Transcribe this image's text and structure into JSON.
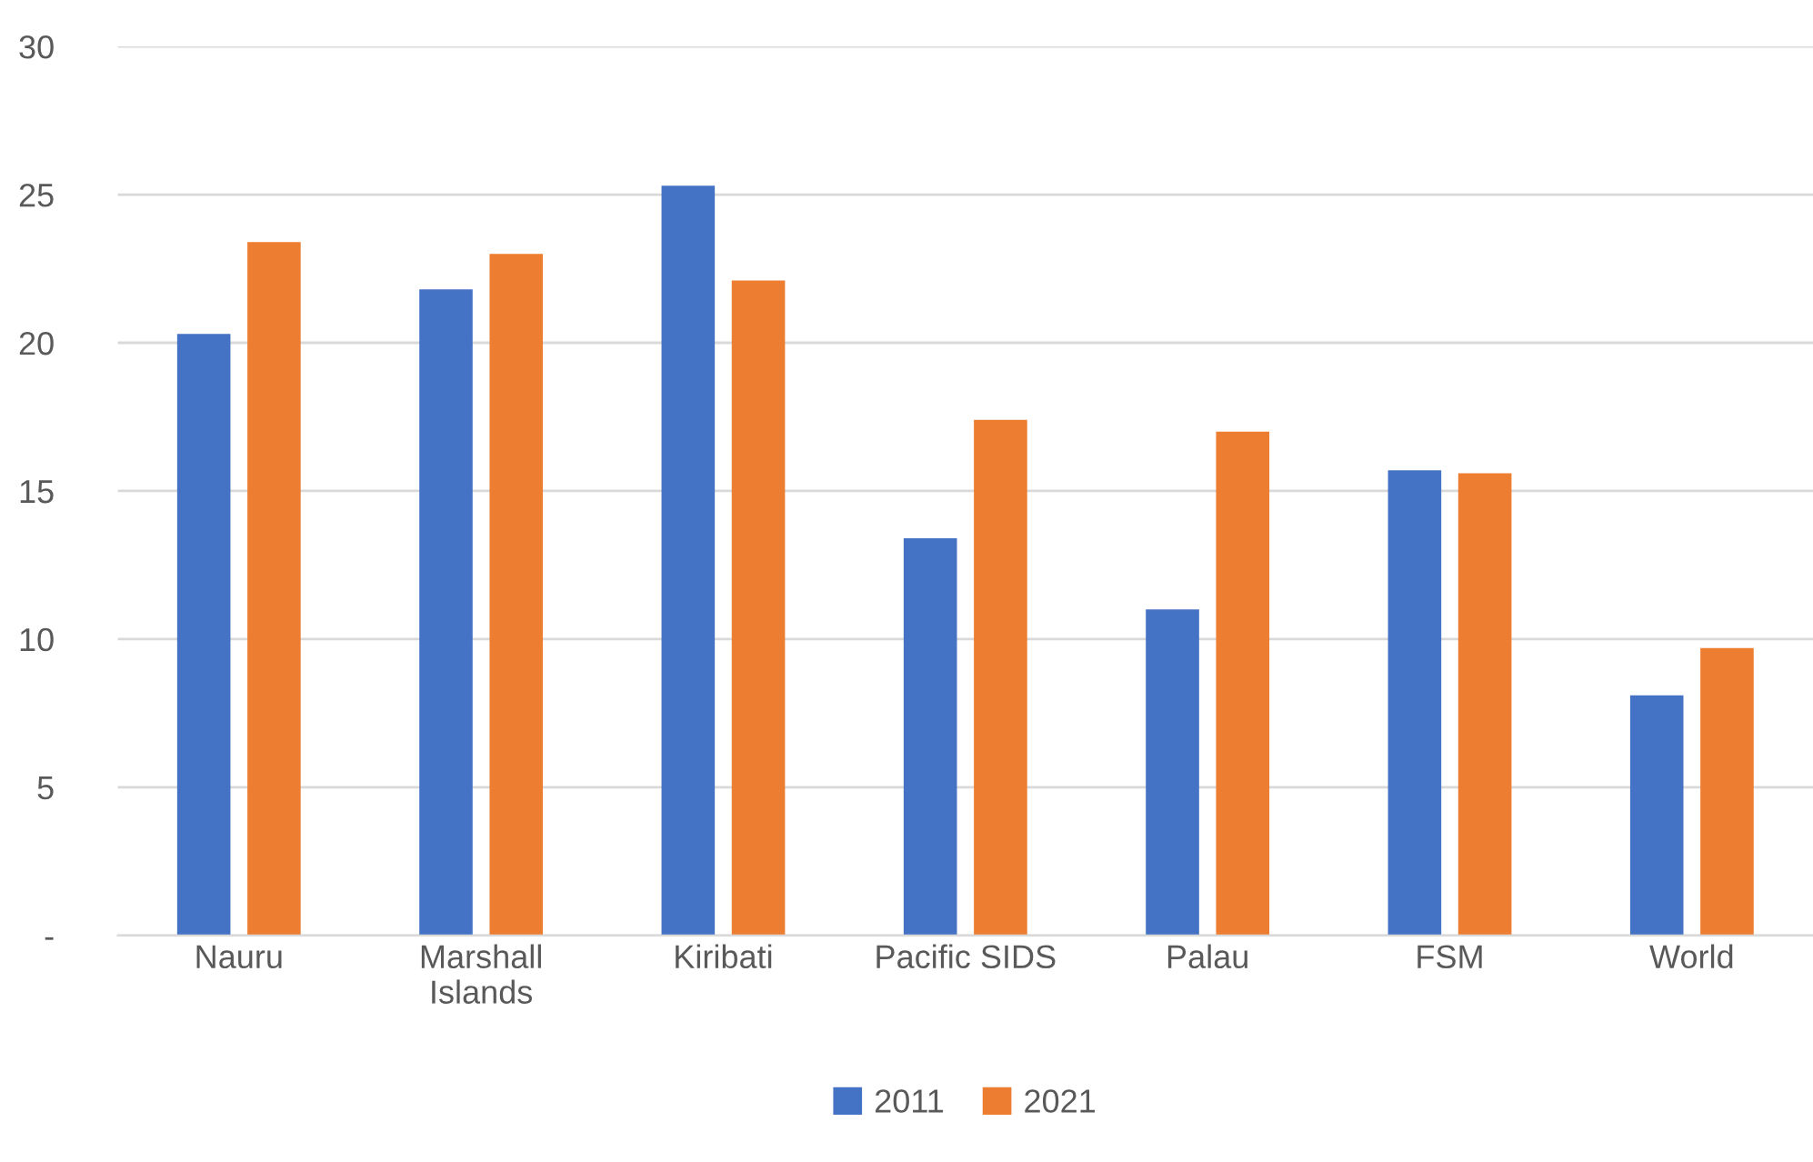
{
  "chart_data": {
    "type": "bar",
    "categories": [
      "Nauru",
      "Marshall\nIslands",
      "Kiribati",
      "Pacific SIDS",
      "Palau",
      "FSM",
      "World"
    ],
    "series": [
      {
        "name": "2011",
        "color": "#4472c4",
        "values": [
          20.3,
          21.8,
          25.3,
          13.4,
          11.0,
          15.7,
          8.1
        ]
      },
      {
        "name": "2021",
        "color": "#ed7d31",
        "values": [
          23.4,
          23.0,
          22.1,
          17.4,
          17.0,
          15.6,
          9.7
        ]
      }
    ],
    "ylim": [
      0,
      30
    ],
    "yticks": [
      {
        "value": 0,
        "label": "-"
      },
      5,
      10,
      15,
      20,
      25,
      30
    ],
    "grid": "y",
    "legend": "bottom"
  }
}
